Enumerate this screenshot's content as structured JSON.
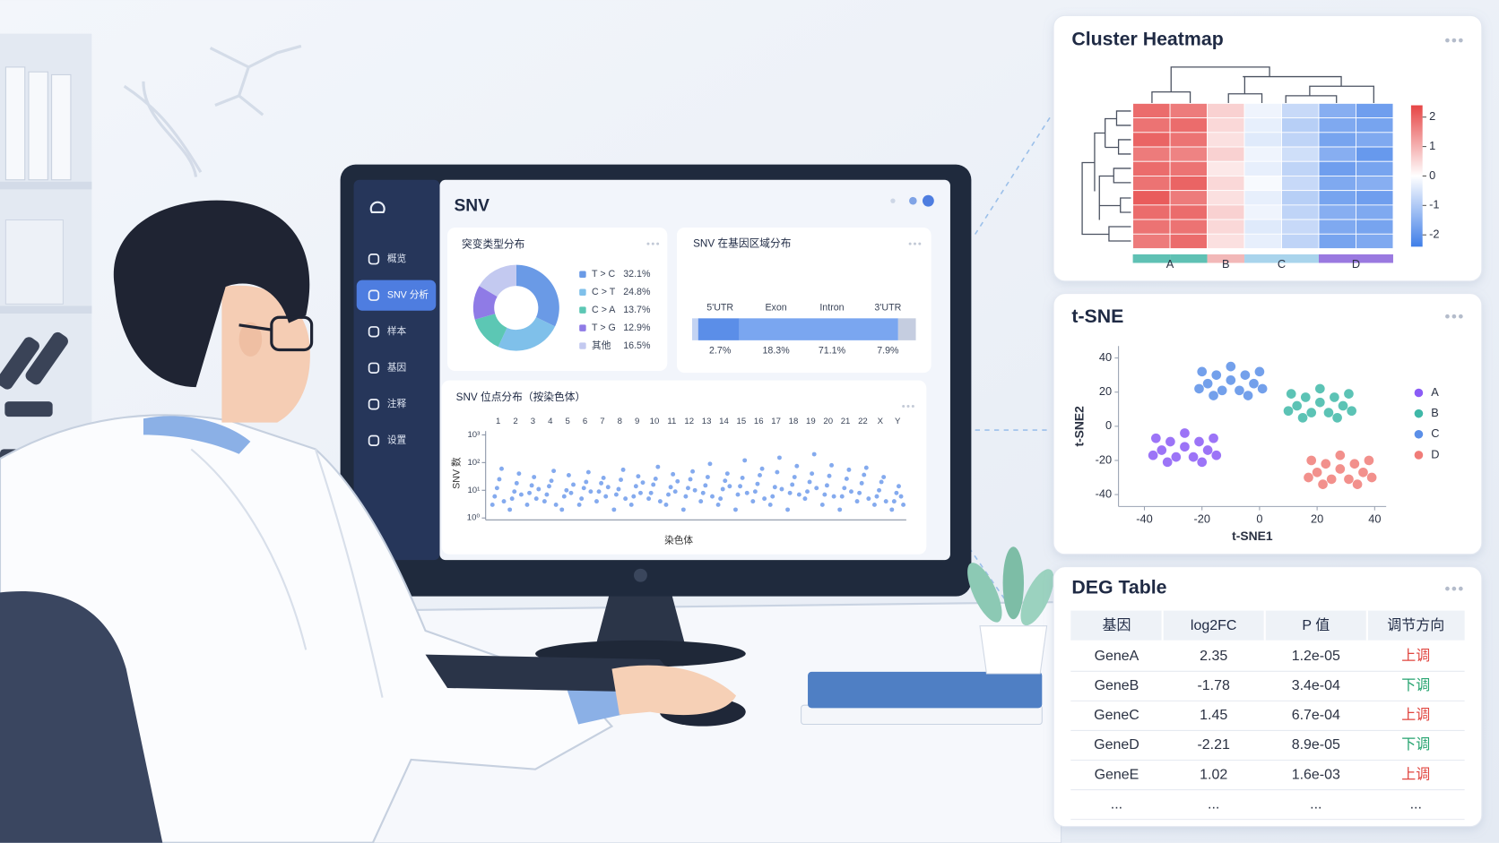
{
  "screen": {
    "title": "SNV",
    "nav": [
      "概览",
      "SNV 分析",
      "样本",
      "基因",
      "注释",
      "设置"
    ],
    "active": 1,
    "mutation_types": {
      "type": "pie",
      "title": "突变类型分布",
      "categories": [
        "T > C",
        "C > T",
        "C > A",
        "T > G",
        "其他"
      ],
      "values": [
        32.1,
        24.8,
        13.7,
        12.9,
        16.5
      ],
      "value_labels": [
        "32.1%",
        "24.8%",
        "13.7%",
        "12.9%",
        "16.5%"
      ],
      "colors": [
        "#6a9ae6",
        "#7fc0ea",
        "#5cc7b4",
        "#8f7be6",
        "#c3c9f0"
      ]
    },
    "regions": {
      "type": "stacked-bar",
      "title": "SNV 在基因区域分布",
      "categories": [
        "5'UTR",
        "Exon",
        "Intron",
        "3'UTR"
      ],
      "values": [
        2.7,
        18.3,
        71.1,
        7.9
      ],
      "value_labels": [
        "2.7%",
        "18.3%",
        "71.1%",
        "7.9%"
      ],
      "colors": [
        "#c3d3f3",
        "#5b8ee8",
        "#7aa6f0",
        "#c5cde0"
      ]
    },
    "manhattan": {
      "type": "scatter",
      "title": "SNV 位点分布（按染色体）",
      "xlabel": "染色体",
      "ylabel": "SNV 数",
      "log": true,
      "color": "#5b8ee8",
      "categories": [
        "1",
        "2",
        "3",
        "4",
        "5",
        "6",
        "7",
        "8",
        "9",
        "10",
        "11",
        "12",
        "13",
        "14",
        "15",
        "16",
        "17",
        "18",
        "19",
        "20",
        "21",
        "22",
        "X",
        "Y"
      ],
      "values": [
        [
          3,
          6,
          12,
          25,
          60,
          4
        ],
        [
          2,
          5,
          9,
          18,
          40,
          7
        ],
        [
          3,
          8,
          15,
          30,
          5,
          11
        ],
        [
          4,
          7,
          14,
          22,
          50,
          3
        ],
        [
          2,
          6,
          10,
          35,
          8,
          16
        ],
        [
          3,
          5,
          12,
          20,
          45,
          9
        ],
        [
          4,
          9,
          18,
          28,
          6,
          13
        ],
        [
          2,
          7,
          11,
          24,
          55,
          5
        ],
        [
          3,
          6,
          14,
          32,
          8,
          19
        ],
        [
          5,
          8,
          16,
          26,
          70,
          4
        ],
        [
          3,
          7,
          13,
          38,
          9,
          21
        ],
        [
          2,
          6,
          12,
          25,
          48,
          10
        ],
        [
          4,
          8,
          15,
          30,
          90,
          6
        ],
        [
          3,
          5,
          11,
          22,
          40,
          14
        ],
        [
          2,
          7,
          14,
          28,
          120,
          8
        ],
        [
          4,
          9,
          17,
          35,
          60,
          5
        ],
        [
          3,
          6,
          13,
          45,
          150,
          11
        ],
        [
          2,
          8,
          16,
          30,
          75,
          7
        ],
        [
          5,
          9,
          20,
          40,
          200,
          12
        ],
        [
          3,
          7,
          15,
          33,
          80,
          6
        ],
        [
          2,
          6,
          12,
          26,
          55,
          9
        ],
        [
          4,
          8,
          18,
          36,
          65,
          5
        ],
        [
          3,
          6,
          10,
          20,
          30,
          4
        ],
        [
          2,
          4,
          8,
          14,
          6,
          3
        ]
      ],
      "ylim": [
        1,
        1000
      ],
      "yticks": [
        {
          "value": 1,
          "label": "10⁰"
        },
        {
          "value": 10,
          "label": "10¹"
        },
        {
          "value": 100,
          "label": "10²"
        },
        {
          "value": 1000,
          "label": "10³"
        }
      ]
    }
  },
  "heatmap": {
    "type": "heatmap",
    "title": "Cluster Heatmap",
    "column_groups": [
      "A",
      "A",
      "B",
      "C",
      "C",
      "D",
      "D"
    ],
    "groups": [
      {
        "name": "A",
        "color": "#5fc1b4"
      },
      {
        "name": "B",
        "color": "#f2b8b8"
      },
      {
        "name": "C",
        "color": "#a9d4ec"
      },
      {
        "name": "D",
        "color": "#9a79e0"
      }
    ],
    "values": [
      [
        1.9,
        1.7,
        0.6,
        -0.2,
        -0.7,
        -1.5,
        -1.8
      ],
      [
        1.8,
        1.9,
        0.5,
        -0.3,
        -0.9,
        -1.6,
        -1.7
      ],
      [
        2.0,
        1.8,
        0.4,
        -0.4,
        -0.8,
        -1.7,
        -1.6
      ],
      [
        1.7,
        1.6,
        0.6,
        -0.2,
        -0.6,
        -1.5,
        -1.9
      ],
      [
        1.9,
        1.8,
        0.3,
        -0.3,
        -0.8,
        -1.8,
        -1.7
      ],
      [
        1.8,
        2.0,
        0.5,
        -0.1,
        -0.7,
        -1.6,
        -1.5
      ],
      [
        2.1,
        1.7,
        0.4,
        -0.3,
        -0.9,
        -1.7,
        -1.8
      ],
      [
        1.9,
        1.9,
        0.6,
        -0.2,
        -0.8,
        -1.5,
        -1.6
      ],
      [
        1.8,
        1.8,
        0.5,
        -0.4,
        -0.7,
        -1.6,
        -1.7
      ],
      [
        1.7,
        1.9,
        0.4,
        -0.3,
        -0.8,
        -1.7,
        -1.6
      ]
    ],
    "colorscale": [
      "#3f7ee8",
      "#ffffff",
      "#e64545"
    ],
    "clim": [
      -2.4,
      2.4
    ],
    "cticks": [
      2,
      1,
      0,
      -1,
      -2
    ]
  },
  "tsne": {
    "type": "scatter",
    "title": "t-SNE",
    "xlabel": "t-SNE1",
    "ylabel": "t-SNE2",
    "xlim": [
      -49,
      44
    ],
    "ylim": [
      -47,
      47
    ],
    "xticks": [
      -40,
      -20,
      0,
      20,
      40
    ],
    "yticks": [
      40,
      20,
      0,
      -20,
      -40
    ],
    "series": [
      {
        "name": "A",
        "color": "#8b5cf6",
        "x": [
          -26,
          -21,
          -31,
          -18,
          -34,
          -23,
          -29,
          -16,
          -36,
          -26,
          -20,
          -32,
          -15,
          -37
        ],
        "values": [
          -12,
          -9,
          -9,
          -14,
          -14,
          -18,
          -18,
          -7,
          -7,
          -4,
          -21,
          -21,
          -17,
          -17
        ]
      },
      {
        "name": "B",
        "color": "#3fb8a8",
        "x": [
          21,
          26,
          16,
          29,
          13,
          24,
          18,
          31,
          11,
          21,
          27,
          15,
          32,
          10
        ],
        "values": [
          14,
          17,
          17,
          12,
          12,
          8,
          8,
          19,
          19,
          22,
          5,
          5,
          9,
          9
        ]
      },
      {
        "name": "C",
        "color": "#5b8fe8",
        "x": [
          -10,
          -5,
          -15,
          -2,
          -18,
          -7,
          -13,
          0,
          -20,
          -10,
          -4,
          -16,
          1,
          -21
        ],
        "values": [
          27,
          30,
          30,
          25,
          25,
          21,
          21,
          32,
          32,
          35,
          18,
          18,
          22,
          22
        ]
      },
      {
        "name": "D",
        "color": "#f07c78",
        "x": [
          28,
          33,
          23,
          36,
          20,
          31,
          25,
          38,
          18,
          28,
          34,
          22,
          39,
          17
        ],
        "values": [
          -25,
          -22,
          -22,
          -27,
          -27,
          -31,
          -31,
          -20,
          -20,
          -17,
          -34,
          -34,
          -30,
          -30
        ]
      }
    ]
  },
  "deg_table": {
    "title": "DEG Table",
    "header": [
      "基因",
      "log2FC",
      "P 值",
      "调节方向"
    ],
    "rows": [
      [
        "GeneA",
        "2.35",
        "1.2e-05",
        "上调"
      ],
      [
        "GeneB",
        "-1.78",
        "3.4e-04",
        "下调"
      ],
      [
        "GeneC",
        "1.45",
        "6.7e-04",
        "上调"
      ],
      [
        "GeneD",
        "-2.21",
        "8.9e-05",
        "下调"
      ],
      [
        "GeneE",
        "1.02",
        "1.6e-03",
        "上调"
      ],
      [
        "...",
        "...",
        "...",
        "..."
      ]
    ],
    "direction_colors": {
      "上调": "#e0453f",
      "下调": "#25a36f"
    }
  }
}
